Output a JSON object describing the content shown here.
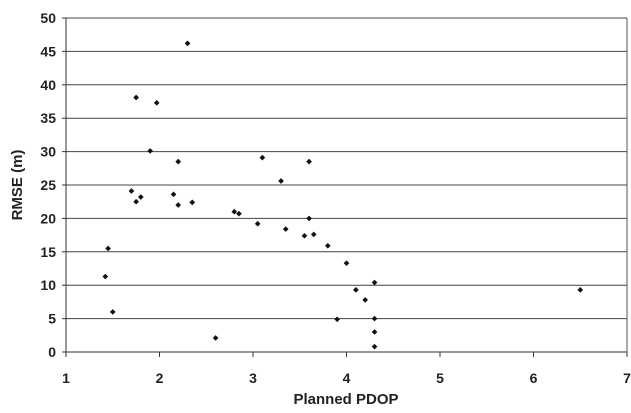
{
  "chart_data": {
    "type": "scatter",
    "title": "",
    "xlabel": "Planned PDOP",
    "ylabel": "RMSE (m)",
    "xlim": [
      1,
      7
    ],
    "ylim": [
      0,
      50
    ],
    "x_ticks": [
      "1",
      "2",
      "3",
      "4",
      "5",
      "6",
      "7"
    ],
    "y_ticks": [
      "0",
      "5",
      "10",
      "15",
      "20",
      "25",
      "30",
      "35",
      "40",
      "45",
      "50"
    ],
    "grid": "horizontal",
    "legend": "none",
    "marker_color": "#111111",
    "series": [
      {
        "values": [
          [
            2.3,
            46.2
          ],
          [
            1.75,
            38.1
          ],
          [
            1.97,
            37.3
          ],
          [
            1.9,
            30.1
          ],
          [
            2.2,
            28.5
          ],
          [
            3.1,
            29.1
          ],
          [
            3.6,
            28.5
          ],
          [
            3.3,
            25.6
          ],
          [
            1.7,
            24.1
          ],
          [
            1.8,
            23.2
          ],
          [
            2.15,
            23.6
          ],
          [
            2.35,
            22.4
          ],
          [
            2.2,
            22.0
          ],
          [
            1.75,
            22.5
          ],
          [
            2.8,
            21.0
          ],
          [
            2.85,
            20.7
          ],
          [
            3.6,
            20.0
          ],
          [
            3.05,
            19.2
          ],
          [
            3.35,
            18.4
          ],
          [
            3.55,
            17.4
          ],
          [
            3.65,
            17.6
          ],
          [
            4.0,
            13.3
          ],
          [
            4.3,
            10.4
          ],
          [
            4.3,
            5.0
          ],
          [
            4.3,
            3.0
          ],
          [
            4.3,
            0.8
          ],
          [
            4.2,
            7.8
          ],
          [
            4.1,
            9.3
          ],
          [
            6.5,
            9.3
          ],
          [
            1.45,
            15.5
          ],
          [
            1.5,
            6.0
          ],
          [
            1.42,
            11.3
          ],
          [
            2.6,
            2.1
          ],
          [
            3.8,
            15.9
          ],
          [
            3.9,
            4.9
          ]
        ]
      }
    ]
  }
}
